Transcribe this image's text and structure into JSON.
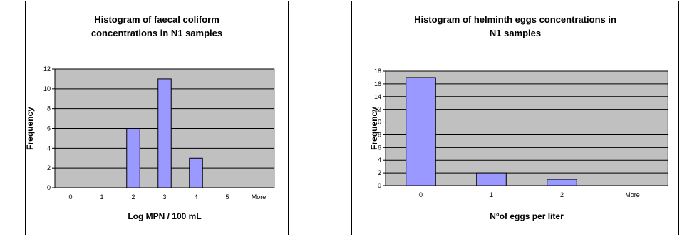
{
  "chart_data": [
    {
      "type": "bar",
      "title_lines": [
        "Histogram of faecal coliform",
        "concentrations in N1 samples"
      ],
      "categories": [
        "0",
        "1",
        "2",
        "3",
        "4",
        "5",
        "More"
      ],
      "values": [
        0,
        0,
        6,
        11,
        3,
        0,
        0
      ],
      "xlabel": "Log MPN / 100 mL",
      "ylabel": "Frequency",
      "ylim": [
        0,
        12
      ],
      "yticks": [
        "0",
        "2",
        "4",
        "6",
        "8",
        "10",
        "12"
      ],
      "grid": true,
      "legend": "none",
      "colors": {
        "bar": "#9999FF",
        "plot_bg": "#C0C0C0",
        "grid": "#000000"
      }
    },
    {
      "type": "bar",
      "title_lines": [
        "Histogram of helminth eggs concentrations in",
        "N1 samples"
      ],
      "categories": [
        "0",
        "1",
        "2",
        "More"
      ],
      "values": [
        17,
        2,
        1,
        0
      ],
      "xlabel": "N°of eggs per liter",
      "ylabel": "Frequency",
      "ylim": [
        0,
        18
      ],
      "yticks": [
        "0",
        "2",
        "4",
        "6",
        "8",
        "10",
        "12",
        "14",
        "16",
        "18"
      ],
      "grid": true,
      "legend": "none",
      "colors": {
        "bar": "#9999FF",
        "plot_bg": "#C0C0C0",
        "grid": "#000000"
      }
    }
  ]
}
